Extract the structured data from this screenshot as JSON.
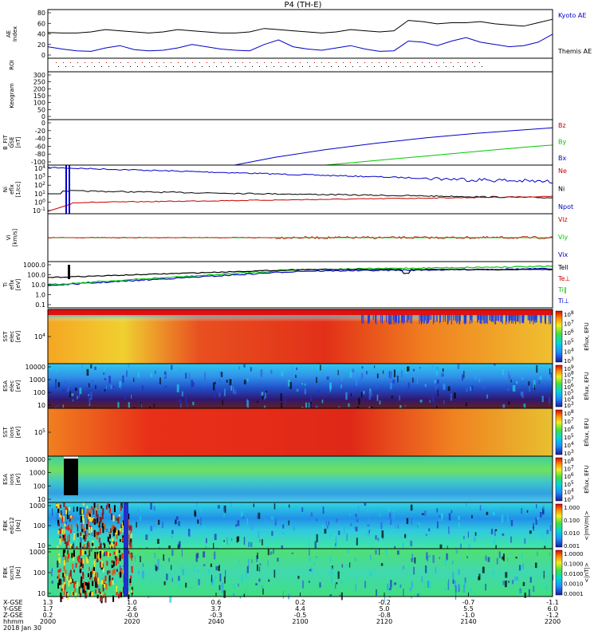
{
  "chart_data": {
    "type": "stacked time-series and spectrograms",
    "title": "P4 (TH-E)",
    "date_label": "2018 Jan 30",
    "time_ticks": [
      "2000",
      "2020",
      "2040",
      "2100",
      "2120",
      "2140",
      "2200"
    ],
    "ephemeris": {
      "labels": [
        "X-GSE",
        "Y-GSE",
        "Z-GSE",
        "hhmm"
      ],
      "rows": [
        [
          "1.3",
          "1.0",
          "0.6",
          "0.2",
          "-0.2",
          "-0.7",
          "-1.1"
        ],
        [
          "1.7",
          "2.6",
          "3.7",
          "4.4",
          "5.0",
          "5.5",
          "6.0"
        ],
        [
          "0.2",
          "-0.0",
          "-0.3",
          "-0.5",
          "-0.8",
          "-1.0",
          "-1.2"
        ]
      ]
    },
    "panels": [
      {
        "id": "ae",
        "ylabel": "AE Index",
        "yticks": [
          "80",
          "60",
          "40",
          "20",
          "0"
        ],
        "legend": [
          {
            "text": "Kyoto AE",
            "color": "#0000c8"
          },
          {
            "text": "Themis AE",
            "color": "#000000"
          }
        ],
        "series": [
          {
            "name": "Kyoto AE",
            "color": "#0000c8",
            "y": [
              20,
              16,
              13,
              12,
              18,
              22,
              15,
              13,
              14,
              18,
              24,
              20,
              16,
              14,
              13,
              24,
              32,
              20,
              16,
              14,
              18,
              22,
              16,
              12,
              13,
              30,
              28,
              22,
              30,
              36,
              28,
              24,
              20,
              22,
              28,
              42
            ]
          },
          {
            "name": "Themis AE",
            "color": "#000000",
            "y": [
              45,
              44,
              44,
              46,
              50,
              48,
              46,
              44,
              46,
              50,
              48,
              46,
              44,
              44,
              46,
              52,
              50,
              48,
              46,
              44,
              46,
              50,
              48,
              46,
              48,
              66,
              64,
              60,
              62,
              62,
              64,
              60,
              58,
              56,
              62,
              68
            ]
          }
        ]
      },
      {
        "id": "roi",
        "ylabel": "ROI"
      },
      {
        "id": "keogram",
        "ylabel": "Keogram",
        "yticks": [
          "300",
          "250",
          "200",
          "150",
          "100",
          "50",
          "0"
        ]
      },
      {
        "id": "bfit",
        "ylabel": "B_FIT GSE [nT]",
        "yticks": [
          "0",
          "-20",
          "-40",
          "-60",
          "-80",
          "-100"
        ],
        "legend": [
          {
            "text": "Bz",
            "color": "#c80000"
          },
          {
            "text": "By",
            "color": "#00c800"
          },
          {
            "text": "Bx",
            "color": "#0000c8"
          }
        ],
        "series": [
          {
            "name": "Bx",
            "color": "#0000c8",
            "x": [
              0.37,
              0.45,
              0.55,
              0.65,
              0.75,
              0.85,
              0.95,
              1.0
            ],
            "y": [
              -100,
              -83,
              -66,
              -52,
              -40,
              -30,
              -22,
              -18
            ]
          },
          {
            "name": "By",
            "color": "#00c800",
            "x": [
              0.55,
              0.65,
              0.75,
              0.85,
              0.95,
              1.0
            ],
            "y": [
              -100,
              -90,
              -80,
              -70,
              -60,
              -56
            ]
          }
        ]
      },
      {
        "id": "density",
        "ylabel": "Ni eflx [1/cc]",
        "yticks": [
          "10^4",
          "10^3",
          "10^2",
          "10^1",
          "10^0",
          "10^-1"
        ],
        "legend": [
          {
            "text": "Ne",
            "color": "#c80000"
          },
          {
            "text": "Ni",
            "color": "#000000"
          },
          {
            "text": "Npot",
            "color": "#0000c8"
          }
        ]
      },
      {
        "id": "velocity",
        "ylabel": "Vi [km/s]",
        "legend": [
          {
            "text": "Viz",
            "color": "#c80000"
          },
          {
            "text": "Viy",
            "color": "#00c800"
          },
          {
            "text": "Vix",
            "color": "#0000c8"
          }
        ]
      },
      {
        "id": "temperature",
        "ylabel": "Ti eflx [eV]",
        "yticks": [
          "1000.0",
          "100.0",
          "10.0",
          "1.0",
          "0.1"
        ],
        "legend": [
          {
            "text": "Tell",
            "color": "#000000"
          },
          {
            "text": "Te⊥",
            "color": "#c80000"
          },
          {
            "text": "Ti‖",
            "color": "#00c800"
          },
          {
            "text": "Ti⊥",
            "color": "#0000c8"
          }
        ]
      },
      {
        "id": "sst_e",
        "ylabel": "SST elec [eV]",
        "yticks": [
          "10^4"
        ],
        "cbar_label": "Eflux, EFU",
        "cbar_ticks": [
          "10^8",
          "10^7",
          "10^6",
          "10^5",
          "10^4",
          "10^3"
        ]
      },
      {
        "id": "esa_e",
        "ylabel": "ESA elec [eV]",
        "yticks": [
          "10000",
          "1000",
          "100",
          "10"
        ],
        "cbar_label": "Eflux, EFU",
        "cbar_ticks": [
          "10^9",
          "10^8",
          "10^7",
          "10^6",
          "10^5",
          "10^4",
          "10^3"
        ]
      },
      {
        "id": "sst_i",
        "ylabel": "SST ions [eV]",
        "yticks": [
          "10^5"
        ],
        "cbar_label": "Eflux, EFU",
        "cbar_ticks": [
          "10^8",
          "10^7",
          "10^6",
          "10^5",
          "10^4",
          "10^3"
        ]
      },
      {
        "id": "esa_i",
        "ylabel": "ESA ions [eV]",
        "yticks": [
          "10000",
          "1000",
          "100",
          "10"
        ],
        "cbar_label": "Eflux, EFU",
        "cbar_ticks": [
          "10^8",
          "10^7",
          "10^6",
          "10^5",
          "10^4",
          "10^3"
        ]
      },
      {
        "id": "fbk_e",
        "ylabel": "FBK edc12 [Hz]",
        "yticks": [
          "1000",
          "100",
          "10"
        ],
        "cbar_label": "<|mV/m|>",
        "cbar_ticks": [
          "1.000",
          "0.100",
          "0.010",
          "0.001"
        ]
      },
      {
        "id": "fbk_b",
        "ylabel": "FBK scm1 [Hz]",
        "yticks": [
          "1000",
          "100",
          "10"
        ],
        "cbar_label": "<|nT|>",
        "cbar_ticks": [
          "1.0000",
          "0.1000",
          "0.0100",
          "0.0010",
          "0.0001"
        ]
      }
    ]
  }
}
